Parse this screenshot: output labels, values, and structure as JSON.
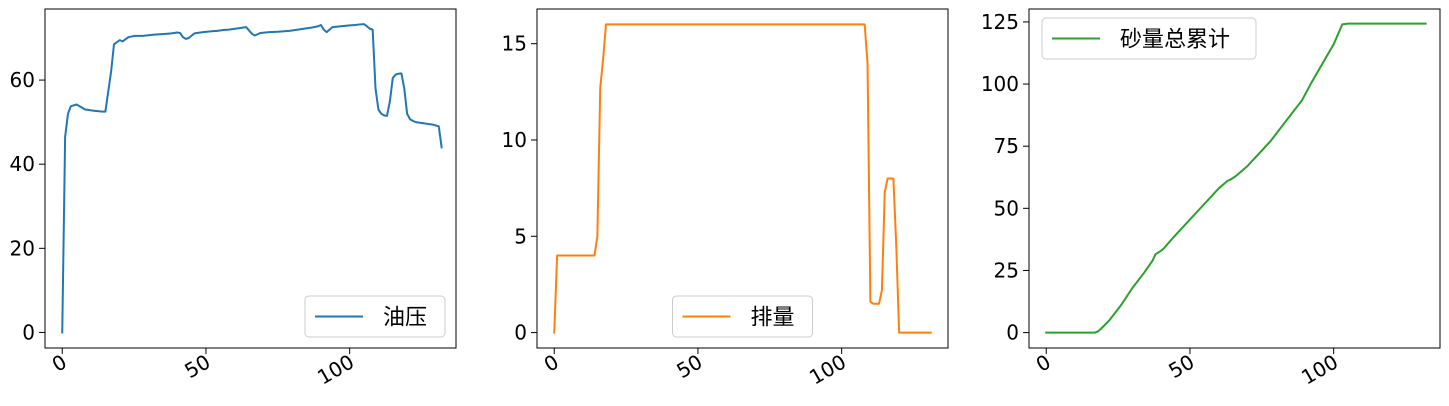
{
  "chart_data": [
    {
      "type": "line",
      "title": "",
      "xlabel": "",
      "ylabel": "",
      "xlim": [
        -6,
        137
      ],
      "ylim": [
        -3.7,
        76.9
      ],
      "xticks": [
        0,
        50,
        100
      ],
      "xtick_labels": [
        "0",
        "50",
        "100"
      ],
      "yticks": [
        0,
        20,
        40,
        60
      ],
      "ytick_labels": [
        "0",
        "20",
        "40",
        "60"
      ],
      "grid": false,
      "legend_position": "lower right",
      "series": [
        {
          "name": "油压",
          "color": "#1f77b4",
          "x": [
            0,
            1,
            2,
            3,
            5,
            8,
            11,
            14,
            15,
            17,
            18,
            20,
            21,
            23,
            25,
            28,
            32,
            36,
            38,
            40,
            41,
            42,
            43,
            44,
            46,
            49,
            52,
            54,
            56,
            58,
            61,
            64,
            66,
            67,
            69,
            72,
            75,
            79,
            82,
            84,
            87,
            89,
            90,
            91,
            92,
            94,
            97,
            100,
            102,
            103,
            105,
            106,
            107,
            108,
            109,
            110,
            111,
            112,
            113,
            114,
            115,
            116,
            117,
            118,
            119,
            120,
            121,
            122,
            123,
            125,
            127,
            129,
            130,
            131,
            132
          ],
          "y": [
            0,
            46.5,
            52,
            53.8,
            54.2,
            53,
            52.7,
            52.5,
            52.5,
            62,
            68.5,
            69.5,
            69.2,
            70.2,
            70.5,
            70.5,
            70.8,
            71.0,
            71.1,
            71.3,
            71.2,
            70.2,
            69.8,
            70.0,
            71.1,
            71.4,
            71.6,
            71.7,
            71.9,
            72.0,
            72.3,
            72.6,
            71.0,
            70.6,
            71.2,
            71.4,
            71.5,
            71.7,
            72.0,
            72.2,
            72.5,
            72.8,
            73.1,
            72.0,
            71.4,
            72.6,
            72.8,
            73.0,
            73.1,
            73.2,
            73.3,
            72.8,
            72.2,
            72.0,
            58,
            53,
            52,
            51.6,
            51.5,
            55,
            60.5,
            61.3,
            61.5,
            61.6,
            58,
            52,
            50.7,
            50.3,
            50.0,
            49.8,
            49.6,
            49.4,
            49.2,
            49.0,
            44
          ]
        }
      ]
    },
    {
      "type": "line",
      "title": "",
      "xlabel": "",
      "ylabel": "",
      "xlim": [
        -6,
        137
      ],
      "ylim": [
        -0.8,
        16.8
      ],
      "xticks": [
        0,
        50,
        100
      ],
      "xtick_labels": [
        "0",
        "50",
        "100"
      ],
      "yticks": [
        0,
        5,
        10,
        15
      ],
      "ytick_labels": [
        "0",
        "5",
        "10",
        "15"
      ],
      "grid": false,
      "legend_position": "lower center",
      "series": [
        {
          "name": "排量",
          "color": "#ff7f0e",
          "x": [
            0,
            1,
            2,
            13,
            14,
            15,
            16,
            17,
            18,
            108,
            109,
            110,
            111,
            112,
            113,
            114,
            115,
            116,
            117,
            118,
            119,
            120,
            121,
            131
          ],
          "y": [
            0,
            4,
            4,
            4,
            4,
            5,
            12.7,
            14.2,
            16,
            16,
            14,
            1.6,
            1.5,
            1.5,
            1.5,
            2.2,
            7.3,
            8.0,
            8.0,
            8.0,
            4.5,
            0,
            0,
            0
          ]
        }
      ]
    },
    {
      "type": "line",
      "title": "",
      "xlabel": "",
      "ylabel": "",
      "xlim": [
        -6,
        137
      ],
      "ylim": [
        -6.2,
        130.2
      ],
      "xticks": [
        0,
        50,
        100
      ],
      "xtick_labels": [
        "0",
        "50",
        "100"
      ],
      "yticks": [
        0,
        25,
        50,
        75,
        100,
        125
      ],
      "ytick_labels": [
        "0",
        "25",
        "50",
        "75",
        "100",
        "125"
      ],
      "grid": false,
      "legend_position": "upper left",
      "series": [
        {
          "name": "砂量总累计",
          "color": "#2ca02c",
          "x": [
            0,
            5,
            10,
            17,
            18,
            19,
            22,
            26,
            30,
            34,
            37,
            38,
            40,
            41,
            44,
            48,
            52,
            56,
            60,
            62,
            63,
            64,
            66,
            70,
            74,
            78,
            82,
            86,
            88,
            89,
            92,
            96,
            100,
            103,
            105,
            110,
            115,
            120,
            125,
            130,
            132
          ],
          "y": [
            0,
            0,
            0,
            0,
            0.5,
            1.5,
            5,
            11,
            18,
            24,
            29,
            31.5,
            33,
            34,
            38,
            43,
            48,
            53,
            58,
            60,
            61,
            61.5,
            63,
            67,
            72,
            77,
            83,
            89,
            92,
            93.5,
            100,
            108,
            116,
            124,
            124.3,
            124.3,
            124.3,
            124.3,
            124.3,
            124.3,
            124.3
          ]
        }
      ]
    }
  ]
}
